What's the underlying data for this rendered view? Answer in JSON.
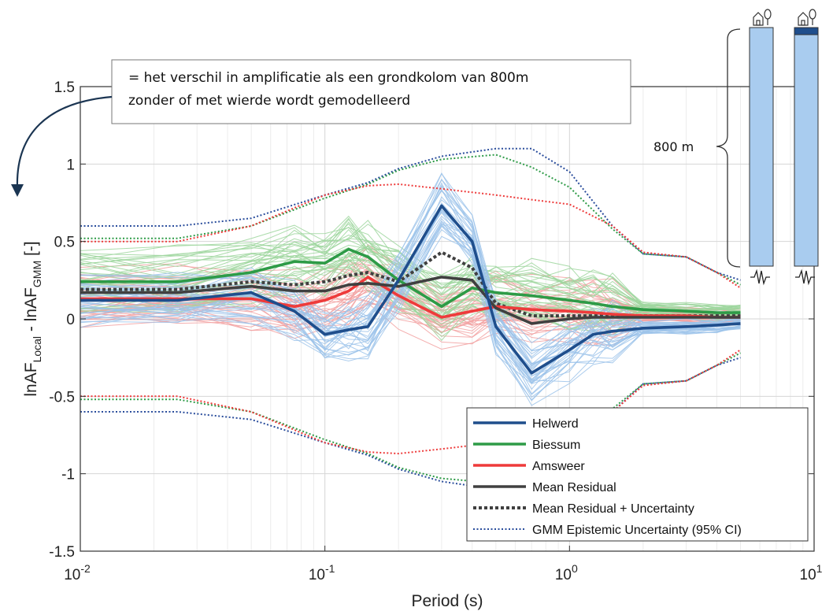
{
  "chart_data": {
    "type": "line",
    "xscale": "log",
    "xlim": [
      0.01,
      10
    ],
    "ylim": [
      -1.5,
      1.5
    ],
    "grid": true,
    "xlabel": "Period (s)",
    "ylabel": "lnAF_Local - lnAF_GMM [-]",
    "ylabel_parts": {
      "a": "lnAF",
      "sub1": "Local",
      "b": " - lnAF",
      "sub2": "GMM",
      "c": " [-]"
    },
    "xticks": [
      {
        "value": 0.01,
        "base": "10",
        "exp": "-2"
      },
      {
        "value": 0.1,
        "base": "10",
        "exp": "-1"
      },
      {
        "value": 1,
        "base": "10",
        "exp": "0"
      },
      {
        "value": 10,
        "base": "10",
        "exp": "1"
      }
    ],
    "yticks": [
      {
        "value": 1.5,
        "label": "1.5"
      },
      {
        "value": 1,
        "label": "1"
      },
      {
        "value": 0.5,
        "label": "0.5"
      },
      {
        "value": 0,
        "label": "0"
      },
      {
        "value": -0.5,
        "label": "-0.5"
      },
      {
        "value": -1,
        "label": "-1"
      },
      {
        "value": -1.5,
        "label": "-1.5"
      }
    ],
    "periods": [
      0.01,
      0.025,
      0.05,
      0.075,
      0.1,
      0.125,
      0.15,
      0.2,
      0.3,
      0.4,
      0.5,
      0.7,
      1.0,
      1.25,
      1.5,
      2.0,
      3.0,
      4.0,
      5.0
    ],
    "series": [
      {
        "name": "Helwerd",
        "color": "#1f4e8c",
        "style": "solid",
        "values": [
          0.12,
          0.12,
          0.17,
          0.05,
          -0.1,
          -0.07,
          -0.05,
          0.25,
          0.73,
          0.5,
          -0.05,
          -0.35,
          -0.2,
          -0.1,
          -0.08,
          -0.06,
          -0.05,
          -0.04,
          -0.03
        ]
      },
      {
        "name": "Biessum",
        "color": "#2e9b47",
        "style": "solid",
        "values": [
          0.24,
          0.24,
          0.3,
          0.37,
          0.36,
          0.45,
          0.4,
          0.25,
          0.08,
          0.2,
          0.17,
          0.15,
          0.12,
          0.1,
          0.08,
          0.06,
          0.05,
          0.04,
          0.04
        ]
      },
      {
        "name": "Amsweer",
        "color": "#ee3b3b",
        "style": "solid",
        "values": [
          0.13,
          0.13,
          0.13,
          0.08,
          0.12,
          0.18,
          0.27,
          0.15,
          0.01,
          0.05,
          0.08,
          0.06,
          0.05,
          0.04,
          0.03,
          0.02,
          0.02,
          0.01,
          0.01
        ]
      },
      {
        "name": "Mean Residual",
        "color": "#404040",
        "style": "solid",
        "values": [
          0.17,
          0.17,
          0.21,
          0.18,
          0.18,
          0.22,
          0.23,
          0.21,
          0.27,
          0.25,
          0.07,
          -0.03,
          0.0,
          0.01,
          0.01,
          0.01,
          0.01,
          0.01,
          0.01
        ]
      },
      {
        "name": "Mean Residual + Uncertainty",
        "color": "#404040",
        "style": "dashed",
        "values": [
          0.19,
          0.19,
          0.24,
          0.22,
          0.24,
          0.28,
          0.3,
          0.24,
          0.43,
          0.33,
          0.1,
          0.02,
          0.02,
          0.02,
          0.02,
          0.02,
          0.02,
          0.02,
          0.02
        ]
      }
    ],
    "gmm_epistemic_uncertainty": {
      "name": "GMM Epistemic Uncertainty (95% CI)",
      "style": "dotted",
      "periods": [
        0.01,
        0.025,
        0.05,
        0.1,
        0.15,
        0.2,
        0.3,
        0.5,
        0.7,
        1.0,
        1.5,
        2.0,
        3.0,
        4.0,
        5.0
      ],
      "upper": [
        {
          "color": "#2a4d9c",
          "values": [
            0.6,
            0.6,
            0.65,
            0.8,
            0.88,
            0.97,
            1.05,
            1.1,
            1.1,
            0.95,
            0.6,
            0.42,
            0.4,
            0.3,
            0.25
          ]
        },
        {
          "color": "#2e9b47",
          "values": [
            0.52,
            0.52,
            0.6,
            0.78,
            0.87,
            0.96,
            1.03,
            1.06,
            0.98,
            0.85,
            0.58,
            0.42,
            0.4,
            0.3,
            0.22
          ]
        },
        {
          "color": "#ee3b3b",
          "values": [
            0.5,
            0.5,
            0.6,
            0.8,
            0.86,
            0.87,
            0.84,
            0.8,
            0.77,
            0.74,
            0.6,
            0.43,
            0.4,
            0.3,
            0.2
          ]
        }
      ],
      "lower": [
        {
          "color": "#2a4d9c",
          "values": [
            -0.6,
            -0.6,
            -0.65,
            -0.8,
            -0.88,
            -0.97,
            -1.05,
            -1.1,
            -1.1,
            -0.95,
            -0.6,
            -0.42,
            -0.4,
            -0.3,
            -0.25
          ]
        },
        {
          "color": "#2e9b47",
          "values": [
            -0.52,
            -0.52,
            -0.6,
            -0.78,
            -0.87,
            -0.96,
            -1.03,
            -1.06,
            -0.98,
            -0.85,
            -0.58,
            -0.42,
            -0.4,
            -0.3,
            -0.22
          ]
        },
        {
          "color": "#ee3b3b",
          "values": [
            -0.5,
            -0.5,
            -0.6,
            -0.8,
            -0.86,
            -0.87,
            -0.84,
            -0.8,
            -0.77,
            -0.74,
            -0.6,
            -0.43,
            -0.4,
            -0.3,
            -0.2
          ]
        }
      ]
    },
    "legend": {
      "position": "bottom-right",
      "entries": [
        {
          "label": "Helwerd",
          "color": "#1f4e8c",
          "style": "solid"
        },
        {
          "label": "Biessum",
          "color": "#2e9b47",
          "style": "solid"
        },
        {
          "label": "Amsweer",
          "color": "#ee3b3b",
          "style": "solid"
        },
        {
          "label": "Mean Residual",
          "color": "#404040",
          "style": "solid"
        },
        {
          "label": "Mean Residual + Uncertainty",
          "color": "#404040",
          "style": "dashed"
        },
        {
          "label": "GMM Epistemic Uncertainty (95% CI)",
          "color": "#2a4d9c",
          "style": "dotted"
        }
      ]
    },
    "annotation": {
      "line1": "= het verschil in amplificatie als een grondkolom van 800m",
      "line2": "zonder of met wierde wordt gemodelleerd"
    },
    "soil_column": {
      "depth_label": "800 m",
      "color": "#a9ccef",
      "terp_color": "#1f4e8c"
    }
  }
}
